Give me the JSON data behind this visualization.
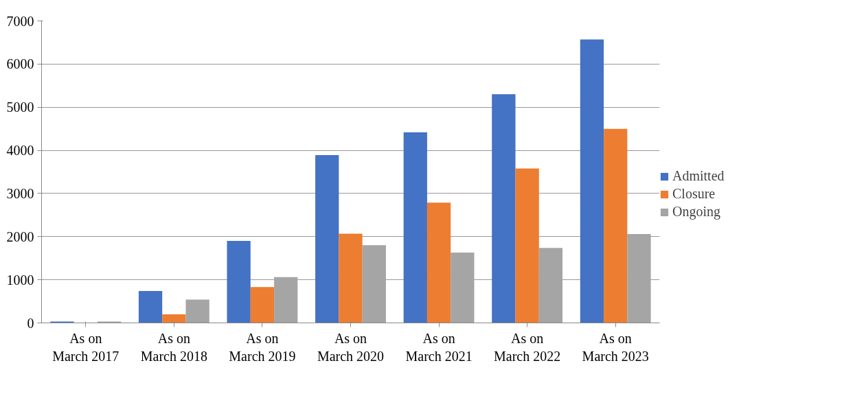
{
  "chart_data": {
    "type": "bar",
    "categories": [
      "As on\nMarch 2017",
      "As on\nMarch 2018",
      "As on\nMarch 2019",
      "As on\nMarch 2020",
      "As on\nMarch 2021",
      "As on\nMarch 2022",
      "As on\nMarch 2023"
    ],
    "series": [
      {
        "name": "Admitted",
        "color": "#4472c4",
        "values": [
          30,
          740,
          1900,
          3890,
          4420,
          5300,
          6570
        ]
      },
      {
        "name": "Closure",
        "color": "#ed7d31",
        "values": [
          0,
          200,
          830,
          2070,
          2790,
          3580,
          4500
        ]
      },
      {
        "name": "Ongoing",
        "color": "#a5a5a5",
        "values": [
          30,
          540,
          1060,
          1800,
          1630,
          1740,
          2060
        ]
      }
    ],
    "ylim": [
      0,
      7000
    ],
    "yticks": [
      0,
      1000,
      2000,
      3000,
      4000,
      5000,
      6000,
      7000
    ],
    "grid": "y",
    "legend": "right"
  }
}
